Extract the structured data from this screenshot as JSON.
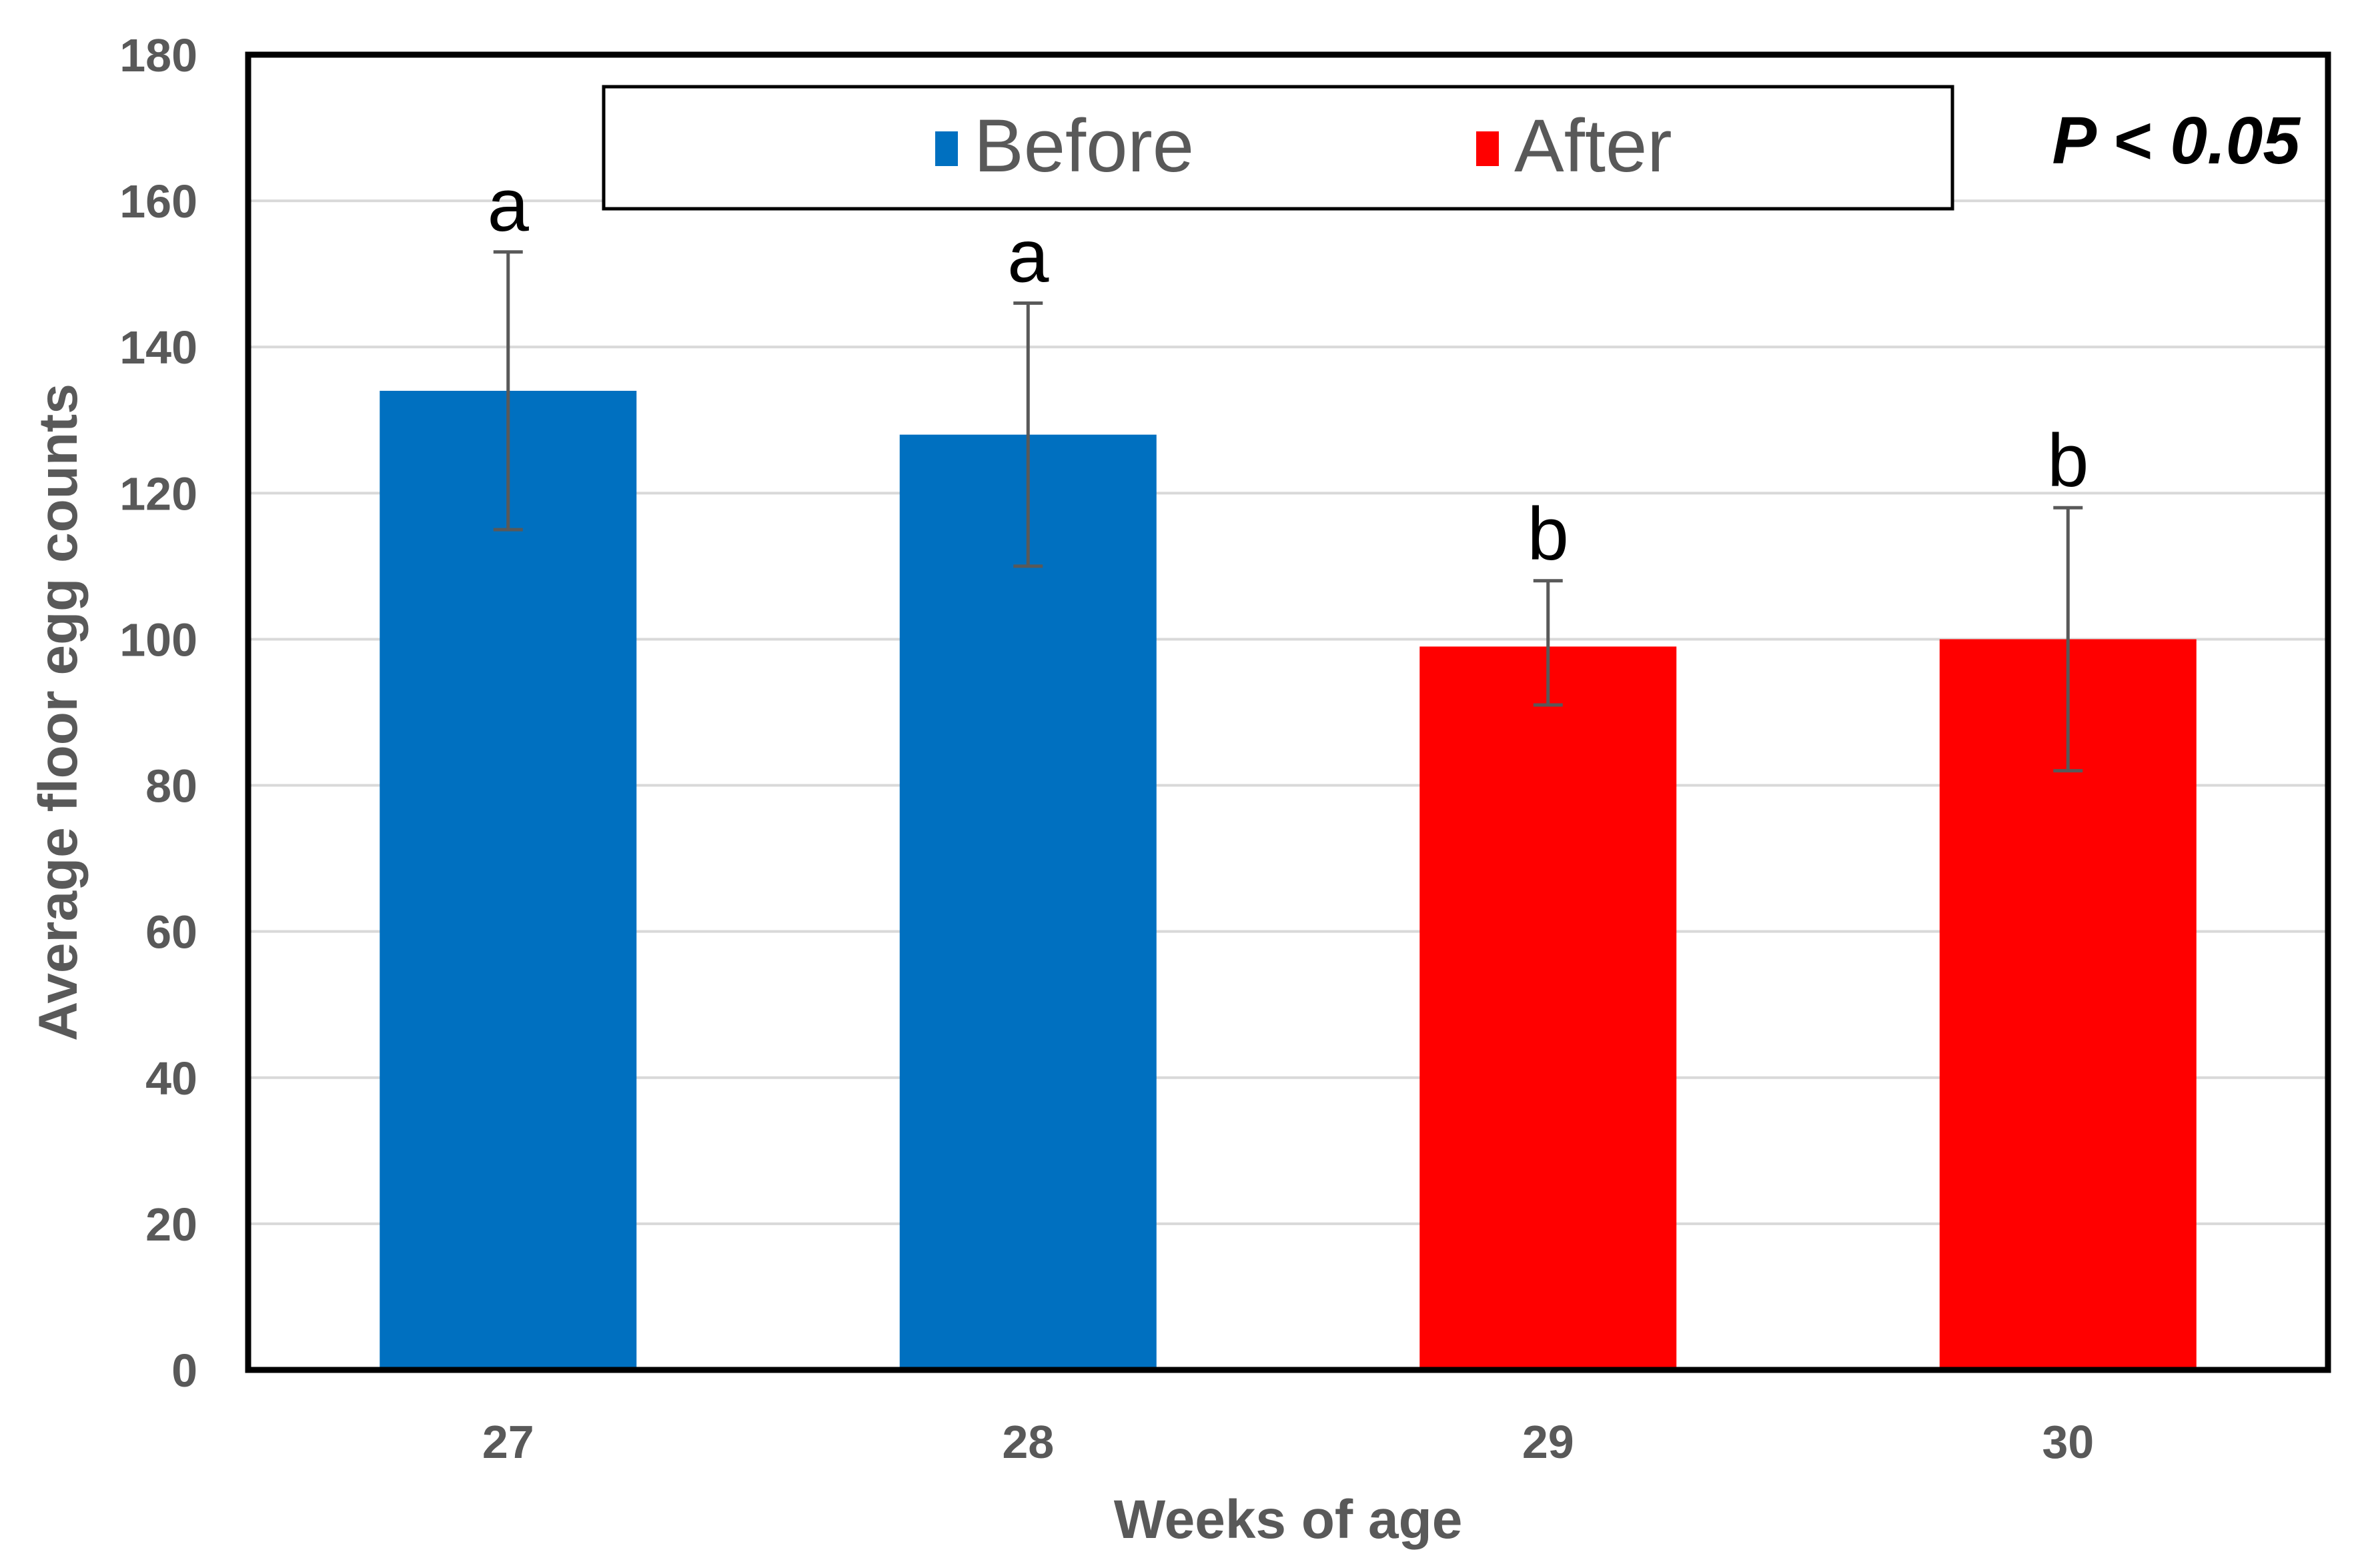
{
  "chart_data": {
    "type": "bar",
    "title": "",
    "xlabel": "Weeks of age",
    "ylabel": "Average floor egg counts",
    "ylim": [
      0,
      180
    ],
    "yticks": [
      0,
      20,
      40,
      60,
      80,
      100,
      120,
      140,
      160,
      180
    ],
    "yticks_text": [
      "0",
      "20",
      "40",
      "60",
      "80",
      "100",
      "120",
      "140",
      "160",
      "180"
    ],
    "grid": true,
    "legend_position": "top-center",
    "categories": [
      "27",
      "28",
      "29",
      "30"
    ],
    "bars": [
      {
        "category": "27",
        "value": 134,
        "error_low": 115,
        "error_high": 153,
        "group": "Before",
        "label": "a"
      },
      {
        "category": "28",
        "value": 128,
        "error_low": 110,
        "error_high": 146,
        "group": "Before",
        "label": "a"
      },
      {
        "category": "29",
        "value": 99,
        "error_low": 91,
        "error_high": 108,
        "group": "After",
        "label": "b"
      },
      {
        "category": "30",
        "value": 100,
        "error_low": 82,
        "error_high": 118,
        "group": "After",
        "label": "b"
      }
    ],
    "legend": [
      {
        "name": "Before",
        "color": "#0070C0"
      },
      {
        "name": "After",
        "color": "#FF0000"
      }
    ],
    "annotation": "P < 0.05"
  }
}
